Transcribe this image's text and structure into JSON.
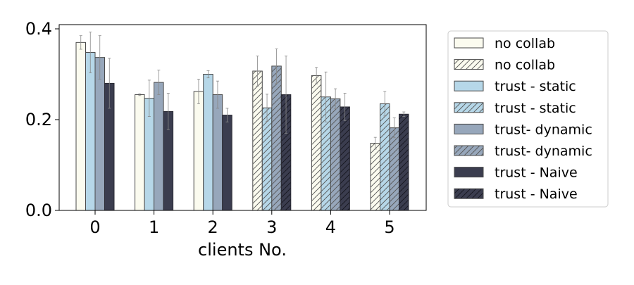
{
  "chart_data": {
    "type": "bar",
    "title": "",
    "xlabel": "clients No.",
    "ylabel": "",
    "categories": [
      "0",
      "1",
      "2",
      "3",
      "4",
      "5"
    ],
    "ylim": [
      0,
      0.4
    ],
    "yticks": [
      "0.0",
      "0.2",
      "0.4"
    ],
    "grid": false,
    "legend_position": "right",
    "series": [
      {
        "name": "no collab",
        "hatched": false,
        "color": "#fbfbef",
        "edge": "#4a4a4a",
        "values": [
          0.37,
          0.255,
          0.262,
          null,
          null,
          null
        ],
        "errors": [
          0.015,
          0.002,
          0.027,
          null,
          null,
          null
        ]
      },
      {
        "name": "trust - static",
        "hatched": false,
        "color": "#b6d7e8",
        "edge": "#4a4a4a",
        "values": [
          0.348,
          0.247,
          0.3,
          null,
          null,
          null
        ],
        "errors": [
          0.045,
          0.04,
          0.008,
          null,
          null,
          null
        ]
      },
      {
        "name": "trust- dynamic",
        "hatched": false,
        "color": "#97a7bb",
        "edge": "#4a4a4a",
        "values": [
          0.337,
          0.282,
          0.255,
          null,
          null,
          null
        ],
        "errors": [
          0.048,
          0.027,
          0.03,
          null,
          null,
          null
        ]
      },
      {
        "name": "trust - Naive",
        "hatched": false,
        "color": "#3b3d4f",
        "edge": "#2a2a33",
        "values": [
          0.28,
          0.218,
          0.21,
          null,
          null,
          null
        ],
        "errors": [
          0.055,
          0.04,
          0.015,
          null,
          null,
          null
        ]
      },
      {
        "name": "no collab",
        "hatched": true,
        "color": "#fbfbef",
        "edge": "#4a4a4a",
        "values": [
          null,
          null,
          null,
          0.307,
          0.297,
          0.148
        ],
        "errors": [
          null,
          null,
          null,
          0.033,
          0.018,
          0.013
        ]
      },
      {
        "name": "trust - static",
        "hatched": true,
        "color": "#b6d7e8",
        "edge": "#4a4a4a",
        "values": [
          null,
          null,
          null,
          0.226,
          0.25,
          0.235
        ],
        "errors": [
          null,
          null,
          null,
          0.03,
          0.055,
          0.027
        ]
      },
      {
        "name": "trust- dynamic",
        "hatched": true,
        "color": "#97a7bb",
        "edge": "#4a4a4a",
        "values": [
          null,
          null,
          null,
          0.318,
          0.246,
          0.182
        ],
        "errors": [
          null,
          null,
          null,
          0.038,
          0.022,
          0.022
        ]
      },
      {
        "name": "trust - Naive",
        "hatched": true,
        "color": "#3b3d4f",
        "edge": "#2a2a33",
        "values": [
          null,
          null,
          null,
          0.255,
          0.228,
          0.212
        ],
        "errors": [
          null,
          null,
          null,
          0.085,
          0.03,
          0.005
        ]
      }
    ],
    "legend": [
      {
        "label": "no collab",
        "color": "#fbfbef",
        "hatched": false
      },
      {
        "label": "no collab",
        "color": "#fbfbef",
        "hatched": true
      },
      {
        "label": "trust - static",
        "color": "#b6d7e8",
        "hatched": false
      },
      {
        "label": "trust - static",
        "color": "#b6d7e8",
        "hatched": true
      },
      {
        "label": "trust- dynamic",
        "color": "#97a7bb",
        "hatched": false
      },
      {
        "label": "trust- dynamic",
        "color": "#97a7bb",
        "hatched": true
      },
      {
        "label": "trust - Naive",
        "color": "#3b3d4f",
        "hatched": false
      },
      {
        "label": "trust - Naive",
        "color": "#3b3d4f",
        "hatched": true
      }
    ]
  }
}
